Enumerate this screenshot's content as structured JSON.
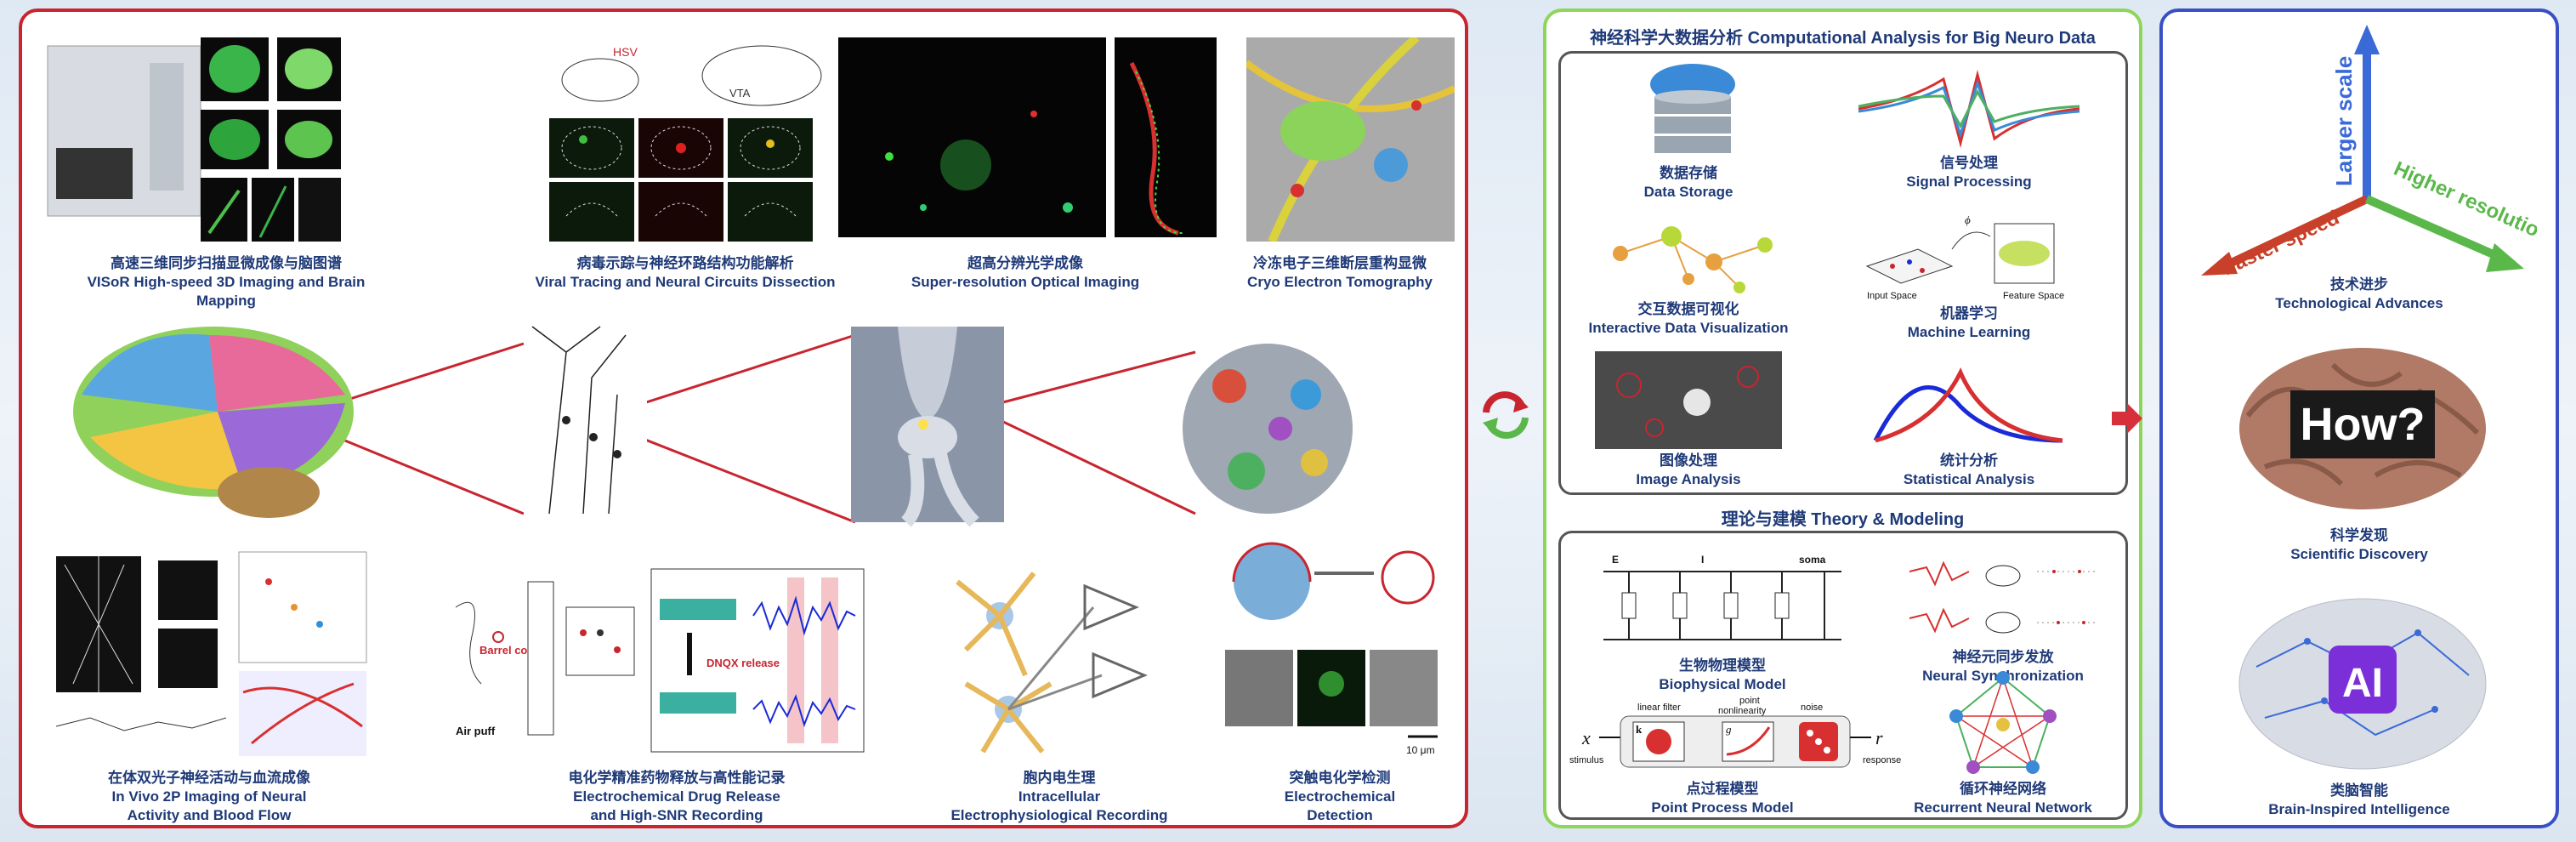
{
  "left": {
    "captions": [
      {
        "zh": "高速三维同步扫描显微成像与脑图谱",
        "en": "VISoR High-speed 3D Imaging  and Brain Mapping"
      },
      {
        "zh": "病毒示踪与神经环路结构功能解析",
        "en": "Viral Tracing and Neural Circuits Dissection"
      },
      {
        "zh": "超高分辨光学成像",
        "en": "Super-resolution Optical Imaging"
      },
      {
        "zh": "冷冻电子三维断层重构显微",
        "en": "Cryo Electron Tomography"
      },
      {
        "zh": "在体双光子神经活动与血流成像",
        "en": "In Vivo 2P Imaging of Neural",
        "en2": "Activity and Blood Flow"
      },
      {
        "zh": "电化学精准药物释放与高性能记录",
        "en": "Electrochemical Drug Release",
        "en2": "and High-SNR Recording"
      },
      {
        "zh": "胞内电生理",
        "en": "Intracellular",
        "en2": "Electrophysiological Recording"
      },
      {
        "zh": "突触电化学检测",
        "en": "Electrochemical",
        "en2": "Detection"
      }
    ],
    "figure_labels": {
      "hsv": "HSV",
      "vta": "VTA",
      "barrel": "Barrel cortex",
      "airpuff": "Air puff",
      "dnqx": "DNQX release",
      "scalebar": "10 μm"
    }
  },
  "middle": {
    "title": "神经科学大数据分析 Computational Analysis for Big Neuro Data",
    "items": [
      {
        "zh": "数据存储",
        "en": "Data Storage"
      },
      {
        "zh": "信号处理",
        "en": "Signal Processing"
      },
      {
        "zh": "交互数据可视化",
        "en": "Interactive Data Visualization"
      },
      {
        "zh": "机器学习",
        "en": "Machine Learning"
      },
      {
        "zh": "图像处理",
        "en": "Image Analysis"
      },
      {
        "zh": "统计分析",
        "en": "Statistical Analysis"
      }
    ],
    "ml_labels": {
      "input": "Input Space",
      "feature": "Feature Space",
      "phi": "ϕ"
    },
    "theory_title": "理论与建模 Theory & Modeling",
    "theory_items": [
      {
        "zh": "生物物理模型",
        "en": "Biophysical Model"
      },
      {
        "zh": "神经元同步发放",
        "en": "Neural Synchronization"
      },
      {
        "zh": "点过程模型",
        "en": "Point Process Model"
      },
      {
        "zh": "循环神经网络",
        "en": "Recurrent Neural Network"
      }
    ],
    "circuit_labels": {
      "e": "E",
      "i": "I",
      "soma": "soma"
    },
    "pp_labels": {
      "x": "x",
      "stimulus": "stimulus",
      "linear": "linear filter",
      "point": "point",
      "nonlin": "nonlinearity",
      "noise": "noise",
      "k": "k",
      "g": "g",
      "r": "r",
      "response": "response"
    }
  },
  "right": {
    "axes": {
      "y": "Larger scale",
      "x": "Faster speed",
      "z": "Higher resolution"
    },
    "items": [
      {
        "zh": "技术进步",
        "en": "Technological Advances"
      },
      {
        "zh": "科学发现",
        "en": "Scientific Discovery"
      },
      {
        "zh": "类脑智能",
        "en": "Brain-Inspired Intelligence"
      }
    ],
    "how": "How?",
    "ai": "AI"
  }
}
